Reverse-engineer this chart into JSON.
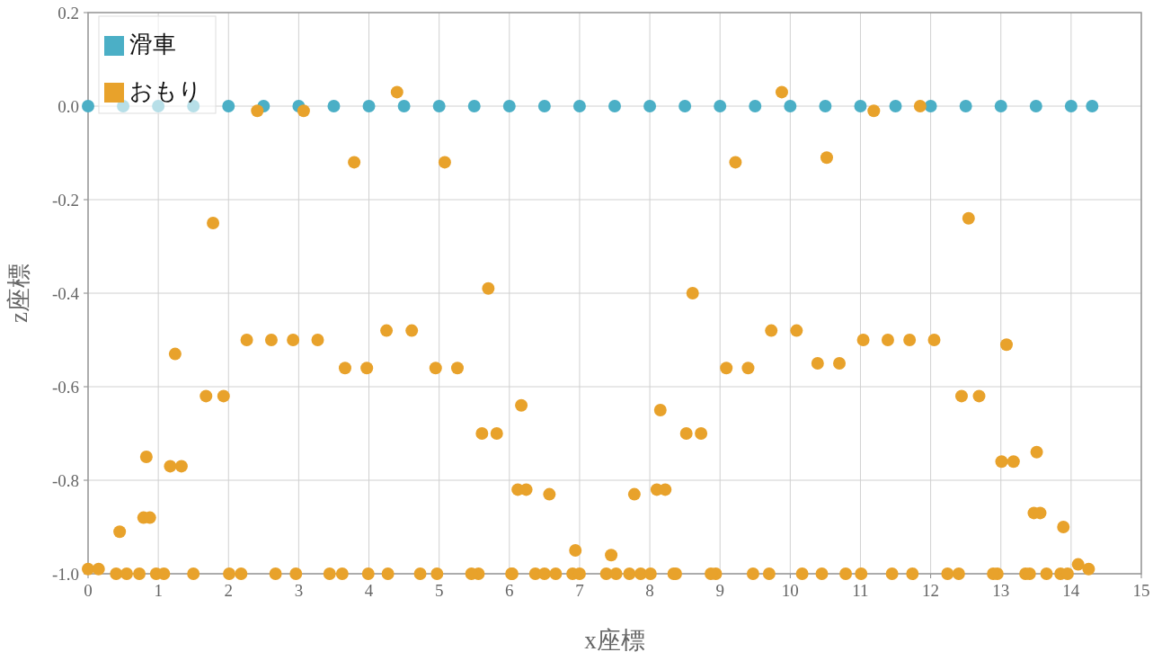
{
  "chart_data": {
    "type": "scatter",
    "xlabel": "x座標",
    "ylabel": "z座標",
    "xlim": [
      0,
      15
    ],
    "ylim": [
      -1.0,
      0.2
    ],
    "xticks": [
      0,
      1,
      2,
      3,
      4,
      5,
      6,
      7,
      8,
      9,
      10,
      11,
      12,
      13,
      14,
      15
    ],
    "yticks": [
      {
        "value": 0.2,
        "label": "0.2"
      },
      {
        "value": 0,
        "label": "0.0"
      },
      -0.2,
      -0.4,
      -0.6,
      -0.8,
      {
        "value": -1.0,
        "label": "-1.0"
      }
    ],
    "grid": true,
    "legend": "top left",
    "marker": "circle",
    "series": [
      {
        "name": "滑車",
        "color": "#4bafc6",
        "x": [
          0,
          0.5,
          1,
          1.5,
          2,
          2.5,
          3,
          3.5,
          4,
          4.5,
          5,
          5.5,
          6,
          6.5,
          7,
          7.5,
          8,
          8.5,
          9,
          9.5,
          10,
          10.5,
          11,
          11.5,
          12,
          12.5,
          13,
          13.5,
          14,
          14.3
        ],
        "values": [
          0,
          0,
          0,
          0,
          0,
          0,
          0,
          0,
          0,
          0,
          0,
          0,
          0,
          0,
          0,
          0,
          0,
          0,
          0,
          0,
          0,
          0,
          0,
          0,
          0,
          0,
          0,
          0,
          0,
          0
        ]
      },
      {
        "name": "おもり",
        "color": "#e8a22b",
        "x": [
          0.0,
          0.15,
          0.4,
          0.45,
          0.55,
          0.73,
          0.79,
          0.83,
          0.88,
          0.97,
          1.08,
          1.17,
          1.24,
          1.33,
          1.5,
          1.68,
          1.78,
          1.93,
          2.18,
          2.01,
          2.26,
          2.41,
          2.61,
          2.96,
          2.67,
          2.92,
          3.07,
          3.27,
          3.62,
          3.44,
          3.66,
          3.79,
          3.97,
          4.27,
          3.99,
          4.25,
          4.4,
          4.61,
          4.97,
          4.73,
          4.95,
          5.08,
          5.26,
          5.56,
          5.46,
          5.61,
          5.7,
          5.82,
          6.04,
          6.03,
          6.12,
          6.17,
          6.24,
          6.37,
          6.5,
          6.57,
          6.66,
          6.9,
          6.94,
          7.0,
          7.38,
          7.45,
          7.52,
          7.71,
          7.78,
          7.87,
          8.01,
          8.1,
          8.15,
          8.22,
          8.34,
          8.37,
          8.52,
          8.61,
          8.73,
          8.94,
          8.87,
          9.09,
          9.22,
          9.4,
          9.7,
          9.47,
          9.73,
          9.88,
          10.09,
          10.45,
          10.17,
          10.39,
          10.52,
          10.7,
          11.01,
          10.79,
          11.04,
          11.19,
          11.39,
          11.74,
          11.45,
          11.7,
          11.85,
          12.05,
          12.4,
          12.24,
          12.44,
          12.54,
          12.69,
          12.95,
          12.89,
          13.01,
          13.08,
          13.18,
          13.35,
          13.41,
          13.47,
          13.51,
          13.56,
          13.65,
          13.85,
          13.89,
          13.95,
          14.1,
          14.25
        ],
        "values": [
          -0.99,
          -0.99,
          -1.0,
          -0.91,
          -1.0,
          -1.0,
          -0.88,
          -0.75,
          -0.88,
          -1.0,
          -1.0,
          -0.77,
          -0.53,
          -0.77,
          -1.0,
          -0.62,
          -0.25,
          -0.62,
          -1.0,
          -1.0,
          -0.5,
          -0.01,
          -0.5,
          -1.0,
          -1.0,
          -0.5,
          -0.01,
          -0.5,
          -1.0,
          -1.0,
          -0.56,
          -0.12,
          -0.56,
          -1.0,
          -1.0,
          -0.48,
          0.03,
          -0.48,
          -1.0,
          -1.0,
          -0.56,
          -0.12,
          -0.56,
          -1.0,
          -1.0,
          -0.7,
          -0.39,
          -0.7,
          -1.0,
          -1.0,
          -0.82,
          -0.64,
          -0.82,
          -1.0,
          -1.0,
          -0.83,
          -1.0,
          -1.0,
          -0.95,
          -1.0,
          -1.0,
          -0.96,
          -1.0,
          -1.0,
          -0.83,
          -1.0,
          -1.0,
          -0.82,
          -0.65,
          -0.82,
          -1.0,
          -1.0,
          -0.7,
          -0.4,
          -0.7,
          -1.0,
          -1.0,
          -0.56,
          -0.12,
          -0.56,
          -1.0,
          -1.0,
          -0.48,
          0.03,
          -0.48,
          -1.0,
          -1.0,
          -0.55,
          -0.11,
          -0.55,
          -1.0,
          -1.0,
          -0.5,
          -0.01,
          -0.5,
          -1.0,
          -1.0,
          -0.5,
          0.0,
          -0.5,
          -1.0,
          -1.0,
          -0.62,
          -0.24,
          -0.62,
          -1.0,
          -1.0,
          -0.76,
          -0.51,
          -0.76,
          -1.0,
          -1.0,
          -0.87,
          -0.74,
          -0.87,
          -1.0,
          -1.0,
          -0.9,
          -1.0,
          -0.98,
          -0.99
        ]
      }
    ]
  }
}
